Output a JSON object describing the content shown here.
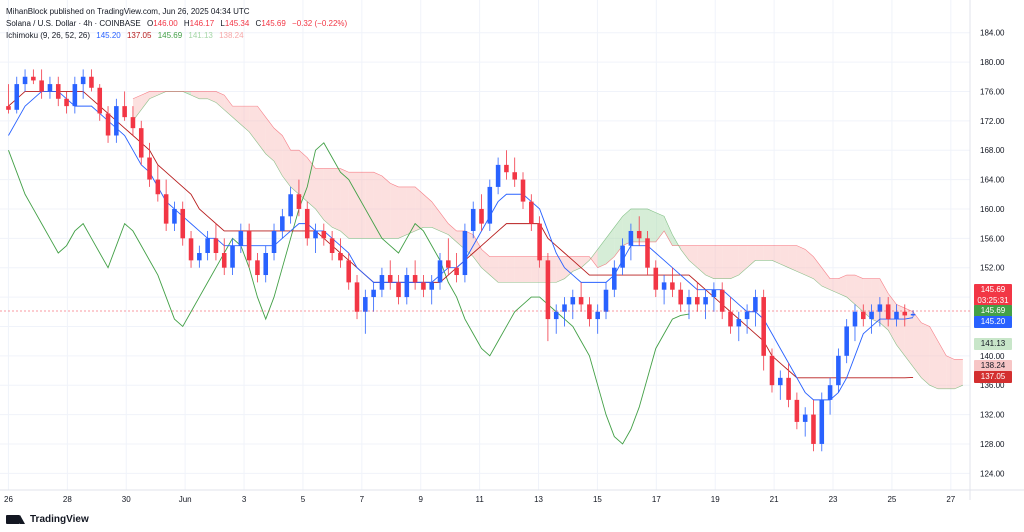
{
  "header": {
    "published": "MihanBlock published on TradingView.com, Jun 26, 2025 04:34 UTC",
    "symbol": "Solana / U.S. Dollar · 4h · COINBASE",
    "o_label": "O",
    "o_value": "146.00",
    "h_label": "H",
    "h_value": "146.17",
    "l_label": "L",
    "l_value": "145.34",
    "c_label": "C",
    "c_value": "145.69",
    "change": "−0.32 (−0.22%)",
    "indicator_name": "Ichimoku (9, 26, 52, 26)",
    "ind_values": [
      "145.20",
      "137.05",
      "145.69",
      "141.13",
      "138.24"
    ]
  },
  "price_tags": {
    "last": {
      "price": "145.69",
      "countdown": "03:25:31"
    },
    "lagging": "145.69",
    "conversion": "145.20",
    "span_b": "141.13",
    "span_a": "138.24",
    "base": "137.05"
  },
  "footer": {
    "brand": "TradingView"
  },
  "colors": {
    "up": "#2962ff",
    "down": "#f23645",
    "conversion": "#2962ff",
    "base": "#b71c1c",
    "lagging": "#43a047",
    "cloud_bull": "#a5d6a7",
    "cloud_bear": "#f8bbb8",
    "tag_last": "#f23645",
    "tag_lagging": "#43a047",
    "tag_conversion": "#2962ff",
    "tag_span_b": "#c8e6c9",
    "tag_span_a": "#f7c5c5",
    "tag_base": "#d32f2f"
  },
  "chart_data": {
    "type": "candlestick",
    "title": "Solana / U.S. Dollar · 4h · COINBASE",
    "ylim": [
      122,
      186
    ],
    "yticks": [
      124,
      128,
      132,
      136,
      140,
      144,
      148,
      152,
      156,
      160,
      164,
      168,
      172,
      176,
      180,
      184
    ],
    "ytick_labels": [
      "124.00",
      "128.00",
      "132.00",
      "136.00",
      "140.00",
      "",
      "",
      "152.00",
      "156.00",
      "160.00",
      "164.00",
      "168.00",
      "172.00",
      "176.00",
      "180.00",
      "184.00"
    ],
    "xlabels": [
      "26",
      "28",
      "30",
      "Jun",
      "3",
      "5",
      "7",
      "9",
      "11",
      "13",
      "15",
      "17",
      "19",
      "21",
      "23",
      "25",
      "27"
    ],
    "x_label_bars": [
      0,
      12,
      24,
      36,
      48,
      60,
      72,
      84,
      96,
      108,
      120,
      132,
      144,
      156,
      168,
      180,
      192
    ],
    "candles": [
      [
        174,
        177,
        173,
        173.5
      ],
      [
        173.5,
        178,
        173,
        177
      ],
      [
        177,
        179,
        176,
        178
      ],
      [
        178,
        179,
        177,
        177.5
      ],
      [
        177.5,
        179,
        175,
        176
      ],
      [
        176,
        178,
        175,
        177
      ],
      [
        177,
        178,
        174,
        175
      ],
      [
        175,
        176,
        173,
        174
      ],
      [
        174,
        178,
        173,
        177
      ],
      [
        177,
        179,
        175,
        178
      ],
      [
        178,
        179,
        176,
        176.5
      ],
      [
        176.5,
        177,
        172,
        173
      ],
      [
        173,
        174,
        169,
        170
      ],
      [
        170,
        175,
        169,
        174
      ],
      [
        174,
        176,
        172,
        172.5
      ],
      [
        172.5,
        174,
        170,
        171
      ],
      [
        171,
        172,
        166,
        167
      ],
      [
        167,
        169,
        163,
        164
      ],
      [
        164,
        166,
        161,
        162
      ],
      [
        162,
        164,
        157,
        158
      ],
      [
        158,
        161,
        157,
        160
      ],
      [
        160,
        161,
        155,
        156
      ],
      [
        156,
        157,
        152,
        153
      ],
      [
        153,
        155,
        152,
        154
      ],
      [
        154,
        157,
        153,
        156
      ],
      [
        156,
        158,
        153,
        154
      ],
      [
        154,
        156,
        151,
        152
      ],
      [
        152,
        156,
        151,
        155
      ],
      [
        155,
        158,
        154,
        157
      ],
      [
        157,
        158,
        152,
        153
      ],
      [
        153,
        154,
        150,
        151
      ],
      [
        151,
        155,
        150,
        154
      ],
      [
        154,
        158,
        153,
        157
      ],
      [
        157,
        160,
        156,
        159
      ],
      [
        159,
        163,
        158,
        162
      ],
      [
        162,
        164,
        159,
        160
      ],
      [
        160,
        161,
        155,
        156
      ],
      [
        156,
        158,
        154,
        157
      ],
      [
        157,
        158,
        155,
        156
      ],
      [
        156,
        157,
        153,
        154
      ],
      [
        154,
        156,
        152,
        153
      ],
      [
        153,
        154,
        149,
        150
      ],
      [
        150,
        151,
        145,
        146
      ],
      [
        146,
        149,
        143,
        148
      ],
      [
        148,
        150,
        146,
        149
      ],
      [
        149,
        152,
        148,
        151
      ],
      [
        151,
        153,
        149,
        150
      ],
      [
        150,
        151,
        147,
        148
      ],
      [
        148,
        152,
        147,
        151
      ],
      [
        151,
        153,
        149,
        150
      ],
      [
        150,
        151,
        148,
        149
      ],
      [
        149,
        151,
        147,
        150
      ],
      [
        150,
        154,
        149,
        153
      ],
      [
        153,
        156,
        151,
        152
      ],
      [
        152,
        154,
        150,
        151
      ],
      [
        151,
        158,
        150,
        157
      ],
      [
        157,
        161,
        156,
        160
      ],
      [
        160,
        162,
        157,
        158
      ],
      [
        158,
        164,
        157,
        163
      ],
      [
        163,
        167,
        162,
        166
      ],
      [
        166,
        168,
        164,
        165
      ],
      [
        165,
        167,
        163,
        164
      ],
      [
        164,
        165,
        160,
        161
      ],
      [
        161,
        162,
        157,
        158
      ],
      [
        158,
        159,
        152,
        153
      ],
      [
        153,
        154,
        142,
        145
      ],
      [
        145,
        147,
        143,
        146
      ],
      [
        146,
        148,
        144,
        147
      ],
      [
        147,
        149,
        145,
        148
      ],
      [
        148,
        150,
        146,
        147
      ],
      [
        147,
        148,
        144,
        145
      ],
      [
        145,
        147,
        143,
        146
      ],
      [
        146,
        150,
        145,
        149
      ],
      [
        149,
        153,
        148,
        152
      ],
      [
        152,
        156,
        151,
        155
      ],
      [
        155,
        158,
        153,
        157
      ],
      [
        157,
        159,
        155,
        156
      ],
      [
        156,
        157,
        151,
        152
      ],
      [
        152,
        153,
        148,
        149
      ],
      [
        149,
        151,
        147,
        150
      ],
      [
        150,
        152,
        148,
        149
      ],
      [
        149,
        150,
        146,
        147
      ],
      [
        147,
        149,
        145,
        148
      ],
      [
        148,
        150,
        146,
        147
      ],
      [
        147,
        149,
        145,
        148
      ],
      [
        148,
        150,
        146,
        149
      ],
      [
        149,
        150,
        145,
        146
      ],
      [
        146,
        148,
        143,
        144
      ],
      [
        144,
        146,
        142,
        145
      ],
      [
        145,
        147,
        143,
        146
      ],
      [
        146,
        149,
        144,
        148
      ],
      [
        148,
        149,
        138,
        140
      ],
      [
        140,
        141,
        135,
        136
      ],
      [
        136,
        138,
        134,
        137
      ],
      [
        137,
        139,
        133,
        134
      ],
      [
        134,
        135,
        130,
        131
      ],
      [
        131,
        133,
        129,
        132
      ],
      [
        132,
        134,
        127,
        128
      ],
      [
        128,
        135,
        127,
        134
      ],
      [
        134,
        137,
        132,
        136
      ],
      [
        136,
        141,
        135,
        140
      ],
      [
        140,
        145,
        139,
        144
      ],
      [
        144,
        147,
        142,
        146
      ],
      [
        146,
        147,
        144,
        145
      ],
      [
        145,
        147,
        143,
        146
      ],
      [
        146,
        148,
        144,
        147
      ],
      [
        147,
        148,
        144,
        145
      ],
      [
        145,
        147,
        144,
        146
      ],
      [
        146,
        147,
        144,
        145.5
      ],
      [
        145.5,
        146.2,
        145.3,
        145.7
      ]
    ],
    "conversion_line": [
      170,
      172,
      174,
      175,
      176,
      176,
      176,
      175,
      174,
      174,
      174,
      173,
      172,
      171,
      170,
      168,
      166,
      165,
      163,
      161,
      160,
      159,
      158,
      157,
      156,
      156,
      155,
      155,
      155,
      155,
      155,
      155,
      155,
      156,
      157,
      158,
      158,
      157,
      157,
      156,
      155,
      154,
      152,
      151,
      150,
      150,
      150,
      150,
      150,
      150,
      150,
      150,
      151,
      152,
      152,
      153,
      155,
      157,
      159,
      161,
      162,
      162,
      162,
      161,
      160,
      157,
      154,
      152,
      151,
      150,
      150,
      150,
      150,
      151,
      153,
      155,
      155,
      155,
      154,
      153,
      152,
      151,
      150,
      149,
      149,
      149,
      149,
      148,
      147,
      146,
      146,
      145,
      143,
      141,
      139,
      137,
      135,
      134,
      134,
      134,
      135,
      137,
      140,
      143,
      144,
      145,
      145,
      145,
      145,
      145.2
    ],
    "base_line": [
      174,
      175,
      176,
      176,
      176,
      176,
      176,
      176,
      176,
      176,
      175,
      174,
      173,
      172,
      171,
      170,
      169,
      168,
      166,
      165,
      164,
      163,
      162,
      160,
      159,
      158,
      157,
      157,
      157,
      157,
      157,
      157,
      157,
      157,
      157,
      157,
      157,
      157,
      156,
      155,
      154,
      153,
      152,
      151,
      150,
      150,
      150,
      150,
      150,
      150,
      150,
      150,
      150,
      151,
      152,
      153,
      154,
      155,
      156,
      157,
      158,
      158,
      158,
      158,
      158,
      156,
      155,
      154,
      153,
      152,
      151,
      151,
      151,
      151,
      151,
      151,
      151,
      151,
      151,
      151,
      151,
      151,
      151,
      150,
      149,
      148,
      147,
      146,
      145,
      144,
      143,
      142,
      140,
      139,
      138,
      137,
      137,
      137,
      137,
      137,
      137,
      137,
      137,
      137,
      137,
      137,
      137,
      137,
      137,
      137.05
    ],
    "lagging_span": [
      168,
      165,
      162,
      160,
      158,
      156,
      154,
      155,
      157,
      158,
      156,
      154,
      152,
      155,
      158,
      157,
      155,
      153,
      151,
      148,
      145,
      144,
      146,
      148,
      150,
      152,
      154,
      156,
      155,
      152,
      148,
      145,
      148,
      152,
      156,
      160,
      163,
      168,
      169,
      167,
      165,
      164,
      162,
      160,
      158,
      156,
      155,
      154,
      156,
      158,
      157,
      155,
      153,
      150,
      148,
      145,
      143,
      141,
      140,
      142,
      144,
      146,
      147,
      148,
      148,
      147,
      146,
      145,
      144,
      142,
      140,
      136,
      132,
      129,
      128,
      130,
      133,
      137,
      141,
      143,
      145,
      145.5,
      145.69
    ]
  }
}
